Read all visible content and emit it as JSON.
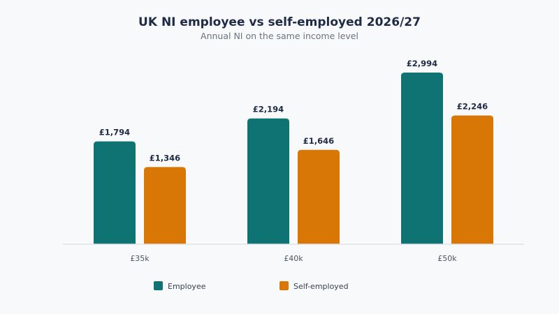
{
  "chart_data": {
    "type": "bar",
    "title": "UK NI employee vs self-employed 2026/27",
    "subtitle": "Annual NI on the same income level",
    "categories": [
      "£35k",
      "£40k",
      "£50k"
    ],
    "series": [
      {
        "name": "Employee",
        "color": "#0f7373",
        "values": [
          1794,
          2194,
          2994
        ],
        "labels": [
          "£1,794",
          "£2,194",
          "£2,994"
        ]
      },
      {
        "name": "Self-employed",
        "color": "#d97706",
        "values": [
          1346,
          1646,
          2246
        ],
        "labels": [
          "£1,346",
          "£1,646",
          "£2,246"
        ]
      }
    ],
    "ylim": [
      0,
      3000
    ],
    "grid": false,
    "legend_position": "bottom"
  }
}
